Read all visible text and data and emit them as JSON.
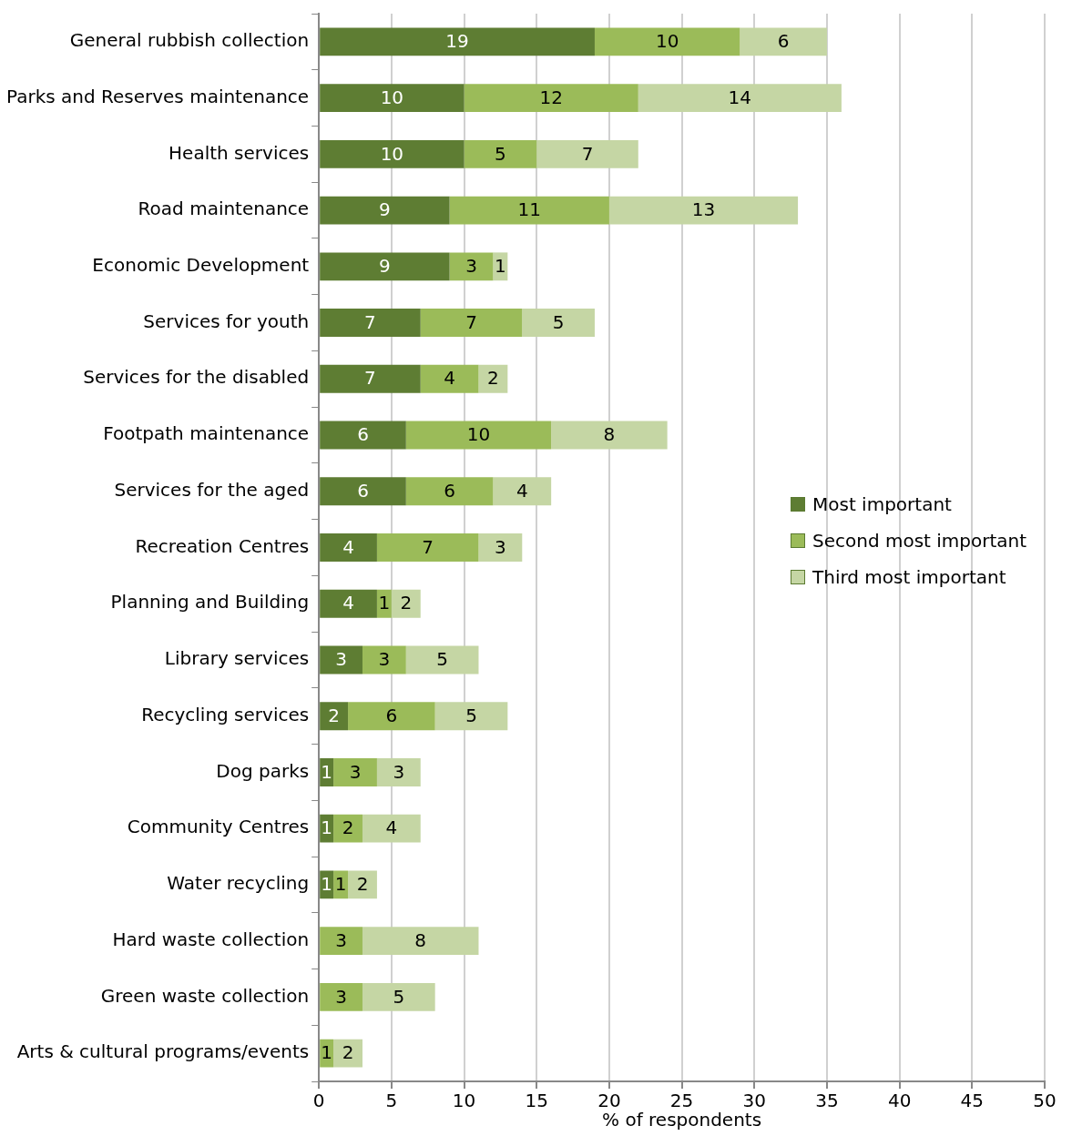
{
  "chart_data": {
    "type": "bar",
    "orientation": "horizontal",
    "stacked": true,
    "xlabel": "% of respondents",
    "categories": [
      "General rubbish collection",
      "Parks and Reserves maintenance",
      "Health services",
      "Road maintenance",
      "Economic Development",
      "Services for youth",
      "Services for the disabled",
      "Footpath maintenance",
      "Services for the aged",
      "Recreation Centres",
      "Planning and Building",
      "Library services",
      "Recycling services",
      "Dog parks",
      "Community Centres",
      "Water recycling",
      "Hard waste collection",
      "Green waste collection",
      "Arts & cultural programs/events"
    ],
    "series": [
      {
        "name": "Most important",
        "color": "#5e7d33",
        "values": [
          19,
          10,
          10,
          9,
          9,
          7,
          7,
          6,
          6,
          4,
          4,
          3,
          2,
          1,
          1,
          1,
          null,
          null,
          null
        ]
      },
      {
        "name": "Second most important",
        "color": "#9bbb59",
        "values": [
          10,
          12,
          5,
          11,
          3,
          7,
          4,
          10,
          6,
          7,
          1,
          3,
          6,
          3,
          2,
          1,
          3,
          3,
          1
        ]
      },
      {
        "name": "Third most important",
        "color": "#c5d6a4",
        "values": [
          6,
          14,
          7,
          13,
          1,
          5,
          2,
          8,
          4,
          3,
          2,
          5,
          5,
          3,
          4,
          2,
          8,
          5,
          2
        ]
      }
    ],
    "xlim": [
      0,
      50
    ],
    "xticks": [
      0,
      5,
      10,
      15,
      20,
      25,
      30,
      35,
      40,
      45,
      50
    ],
    "grid": "x",
    "legend": "right",
    "data_labels": true
  }
}
